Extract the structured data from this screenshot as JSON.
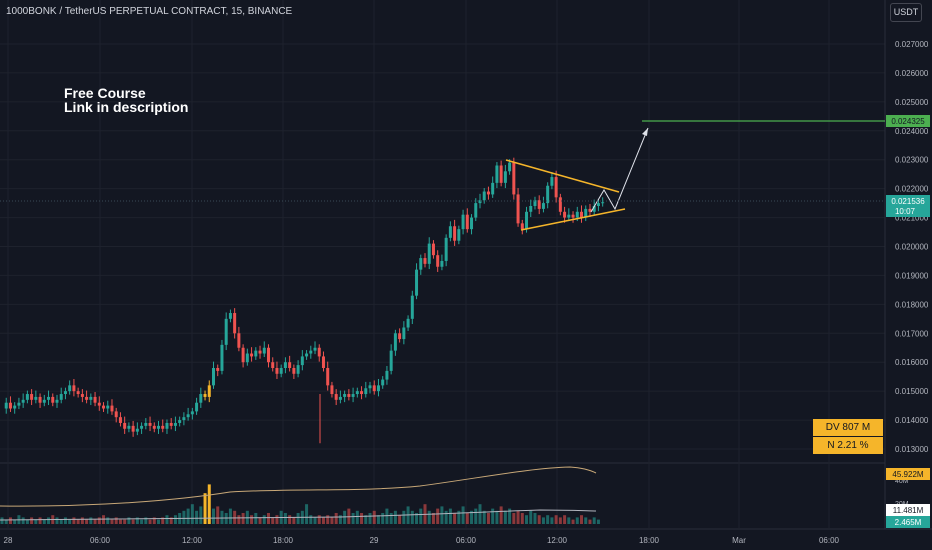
{
  "header": {
    "symbol_line": "1000BONK / TetherUS PERPETUAL CONTRACT, 15, BINANCE",
    "currency_button": "USDT"
  },
  "annotation": {
    "line1": "Free Course",
    "line2": "Link in description"
  },
  "boxes": {
    "dv": "DV 807 M",
    "n": "N 2.21 %"
  },
  "colors": {
    "up": "#26a69a",
    "down": "#ef5350",
    "highlight": "#f5b52a",
    "target": "#4caf50",
    "triangle": "#f5b52a",
    "arrow": "#e0e3eb",
    "background": "#131722",
    "grid": "#1e222d",
    "text": "#b2b5be"
  },
  "chart_data": {
    "type": "candlestick",
    "title": "1000BONK / TetherUS PERPETUAL CONTRACT, 15, BINANCE",
    "y_axis": {
      "ticks": [
        "0.027000",
        "0.026000",
        "0.025000",
        "0.024000",
        "0.023000",
        "0.022000",
        "0.021000",
        "0.020000",
        "0.019000",
        "0.018000",
        "0.017000",
        "0.016000",
        "0.015000",
        "0.014000",
        "0.013000"
      ],
      "ylim": [
        0.0124,
        0.028
      ]
    },
    "x_axis": {
      "ticks": [
        "28",
        "06:00",
        "12:00",
        "18:00",
        "29",
        "06:00",
        "12:00",
        "18:00",
        "Mar",
        "06:00"
      ]
    },
    "last_price": "0.021536",
    "countdown": "10:07",
    "target_price": "0.024325",
    "volume_labels": {
      "ma": "45.922M",
      "vol": "11.481M",
      "small": "2.465M",
      "scale_40": "40M",
      "scale_20": "20M"
    },
    "price_path": [
      0.0144,
      0.0146,
      0.0144,
      0.0145,
      0.0146,
      0.0147,
      0.0149,
      0.0147,
      0.0148,
      0.0146,
      0.0147,
      0.0148,
      0.0146,
      0.0147,
      0.0149,
      0.015,
      0.0152,
      0.015,
      0.0149,
      0.0148,
      0.0147,
      0.0148,
      0.0146,
      0.0145,
      0.0144,
      0.0145,
      0.0143,
      0.0141,
      0.0139,
      0.0137,
      0.0138,
      0.0136,
      0.0137,
      0.0138,
      0.0139,
      0.0138,
      0.0137,
      0.0138,
      0.0137,
      0.0139,
      0.0138,
      0.0139,
      0.014,
      0.0141,
      0.0142,
      0.0143,
      0.0146,
      0.0149,
      0.0148,
      0.0152,
      0.0158,
      0.0157,
      0.0166,
      0.0175,
      0.0177,
      0.017,
      0.0165,
      0.016,
      0.0163,
      0.0162,
      0.0164,
      0.0163,
      0.0165,
      0.016,
      0.0158,
      0.0156,
      0.0158,
      0.016,
      0.0158,
      0.0156,
      0.0159,
      0.0162,
      0.0163,
      0.0164,
      0.0165,
      0.0162,
      0.0158,
      0.0152,
      0.0149,
      0.0147,
      0.0148,
      0.0149,
      0.0148,
      0.0149,
      0.015,
      0.0149,
      0.0151,
      0.0152,
      0.015,
      0.0152,
      0.0154,
      0.0157,
      0.0164,
      0.017,
      0.0168,
      0.0172,
      0.0175,
      0.0183,
      0.0192,
      0.0196,
      0.0194,
      0.0201,
      0.0197,
      0.0193,
      0.0195,
      0.0203,
      0.0207,
      0.0202,
      0.0206,
      0.0211,
      0.0206,
      0.021,
      0.0215,
      0.0216,
      0.0219,
      0.0218,
      0.0222,
      0.0228,
      0.0222,
      0.0226,
      0.0229,
      0.0218,
      0.0208,
      0.0206,
      0.0212,
      0.0214,
      0.0216,
      0.0213,
      0.0215,
      0.0221,
      0.0224,
      0.0217,
      0.0212,
      0.021,
      0.0211,
      0.021,
      0.0212,
      0.021,
      0.0213,
      0.0212,
      0.0214,
      0.0215,
      0.02153
    ],
    "volume_path": [
      3,
      2,
      3,
      2,
      4,
      3,
      2,
      3,
      2,
      3,
      2,
      3,
      4,
      3,
      2,
      3,
      2,
      3,
      2,
      3,
      2,
      3,
      2,
      3,
      4,
      3,
      2,
      3,
      2,
      2,
      3,
      2,
      3,
      2,
      3,
      2,
      3,
      2,
      3,
      4,
      3,
      4,
      5,
      6,
      7,
      9,
      6,
      8,
      14,
      18,
      7,
      8,
      6,
      5,
      7,
      6,
      4,
      5,
      6,
      4,
      5,
      3,
      4,
      5,
      3,
      4,
      6,
      5,
      4,
      3,
      5,
      6,
      9,
      4,
      3,
      4,
      3,
      4,
      3,
      5,
      4,
      6,
      7,
      5,
      6,
      5,
      4,
      5,
      6,
      4,
      5,
      7,
      5,
      6,
      4,
      6,
      8,
      6,
      5,
      7,
      9,
      6,
      5,
      7,
      8,
      6,
      7,
      5,
      6,
      8,
      5,
      6,
      7,
      9,
      6,
      5,
      7,
      6,
      8,
      6,
      7,
      5,
      6,
      5,
      4,
      6,
      5,
      4,
      3,
      4,
      3,
      4,
      3,
      4,
      3,
      2,
      3,
      4,
      3,
      2,
      3,
      2
    ]
  }
}
